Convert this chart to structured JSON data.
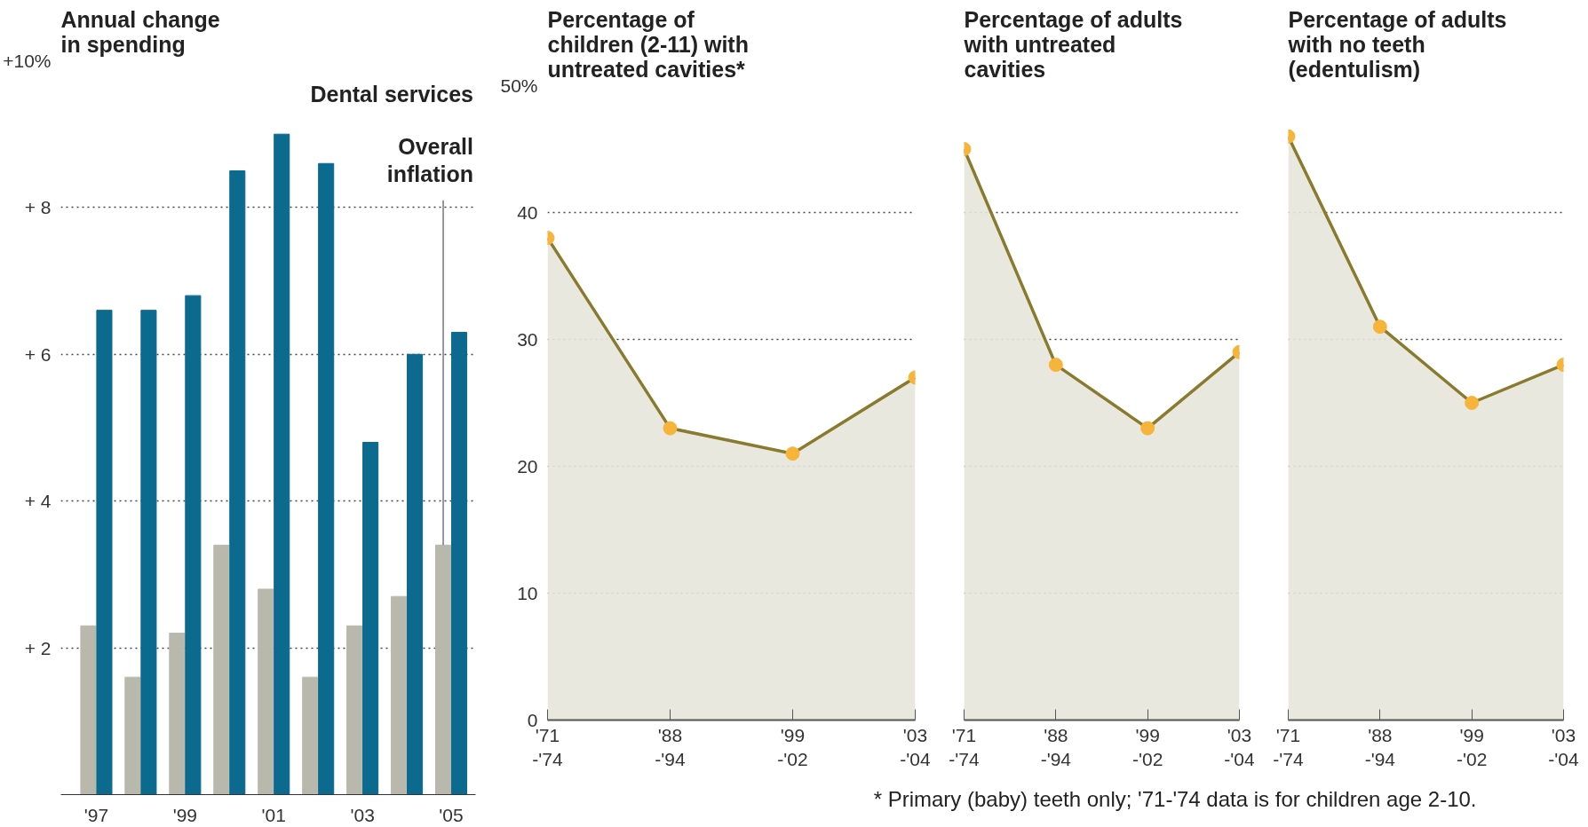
{
  "chart_data": [
    {
      "type": "bar",
      "title": "Annual change in spending",
      "categories": [
        "'97",
        null,
        "'99",
        null,
        "'01",
        null,
        "'03",
        null,
        "'05"
      ],
      "series": [
        {
          "name": "Overall inflation",
          "color": "#b9b8ad",
          "values": [
            2.3,
            1.6,
            2.2,
            3.4,
            2.8,
            1.6,
            2.3,
            2.7,
            3.4
          ]
        },
        {
          "name": "Dental services",
          "color": "#0b6a8e",
          "values": [
            6.6,
            6.6,
            6.8,
            8.5,
            9.0,
            8.6,
            4.8,
            6.0,
            6.3
          ]
        }
      ],
      "ylim": [
        0,
        10
      ],
      "yticks": [
        {
          "value": 2,
          "label": "+ 2"
        },
        {
          "value": 4,
          "label": "+ 4"
        },
        {
          "value": 6,
          "label": "+ 6"
        },
        {
          "value": 8,
          "label": "+ 8"
        },
        {
          "value": 10,
          "label": "+10%"
        }
      ],
      "grid": "y"
    },
    {
      "type": "area",
      "title": "Percentage of children (2-11) with untreated cavities*",
      "categories": [
        "'71 -'74",
        "'88 -'94",
        "'99 -'02",
        "'03 -'04"
      ],
      "series": [
        {
          "color": "#8a7a2e",
          "values": [
            38,
            23,
            21,
            27
          ]
        }
      ],
      "ylim": [
        0,
        50
      ],
      "yticks": [
        0,
        10,
        20,
        30,
        40,
        {
          "value": 50,
          "label": "50%"
        }
      ],
      "grid": "y",
      "marker": "circle",
      "annotations": [
        "* Primary (baby) teeth only; '71-'74 data is for children age 2-10."
      ]
    },
    {
      "type": "area",
      "title": "Percentage of adults with untreated cavities",
      "categories": [
        "'71 -'74",
        "'88 -'94",
        "'99 -'02",
        "'03 -'04"
      ],
      "series": [
        {
          "color": "#8a7a2e",
          "values": [
            45,
            28,
            23,
            29
          ]
        }
      ],
      "ylim": [
        0,
        50
      ],
      "yticks": [
        0,
        10,
        20,
        30,
        40,
        50
      ],
      "grid": "y",
      "marker": "circle",
      "tick_labels": "x"
    },
    {
      "type": "area",
      "title": "Percentage of adults with no teeth (edentulism)",
      "categories": [
        "'71 -'74",
        "'88 -'94",
        "'99 -'02",
        "'03 -'04"
      ],
      "series": [
        {
          "color": "#8a7a2e",
          "values": [
            46,
            31,
            25,
            28
          ]
        }
      ],
      "ylim": [
        0,
        50
      ],
      "yticks": [
        0,
        10,
        20,
        30,
        40,
        50
      ],
      "grid": "y",
      "marker": "circle",
      "tick_labels": "x"
    }
  ]
}
